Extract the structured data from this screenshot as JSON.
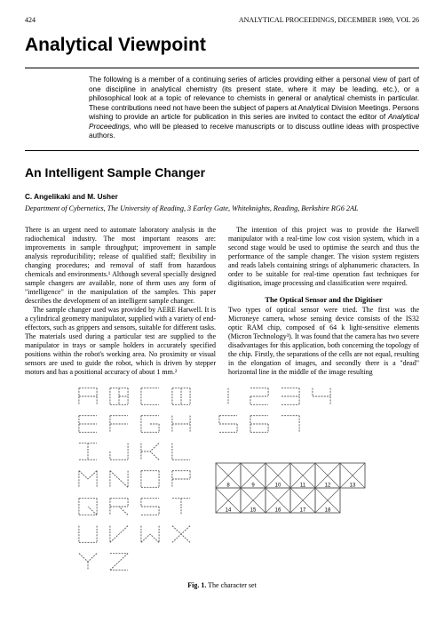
{
  "header": {
    "page_number": "424",
    "running_head": "ANALYTICAL PROCEEDINGS, DECEMBER 1989, VOL 26"
  },
  "main_title": "Analytical Viewpoint",
  "abstract": {
    "text_before_ital": "The following is a member of a continuing series of articles providing either a personal view of part of one discipline in analytical chemistry (its present state, where it may be leading, etc.), or a philosophical look at a topic of relevance to chemists in general or analytical chemists in particular. These contributions need not have been the subject of papers at Analytical Division Meetings. Persons wishing to provide an article for publication in this series are invited to contact the editor of ",
    "ital": "Analytical Proceedings,",
    "text_after_ital": " who will be pleased to receive manuscripts or to discuss outline ideas with prospective authors."
  },
  "article_title": "An Intelligent Sample Changer",
  "authors": "C. Angelikaki and M. Usher",
  "affiliation": "Department of Cybernetics, The University of Reading, 3 Earley Gate, Whiteknights, Reading, Berkshire RG6 2AL",
  "left_col": {
    "p1": "There is an urgent need to automate laboratory analysis in the radiochemical industry. The most important reasons are: improvements in sample throughput; improvement in sample analysis reproducibility; release of qualified staff; flexibility in changing procedures; and removal of staff from hazardous chemicals and environments.¹ Although several specially designed sample changers are available, none of them uses any form of \"intelligence\" in the manipulation of the samples. This paper describes the development of an intelligent sample changer.",
    "p2": "The sample changer used was provided by AERE Harwell. It is a cylindrical geometry manipulator, supplied with a variety of end-effectors, such as grippers and sensors, suitable for different tasks. The materials used during a particular test are supplied to the manipulator in trays or sample holders in accurately specified positions within the robot's working area. No proximity or visual sensors are used to guide the robot, which is driven by stepper motors and has a positional accuracy of about 1 mm.²"
  },
  "right_col": {
    "p1": "The intention of this project was to provide the Harwell manipulator with a real-time low cost vision system, which in a second stage would be used to optimise the search and thus the performance of the sample changer. The vision system registers and reads labels containing strings of alphanumeric characters. In order to be suitable for real-time operation fast techniques for digitisation, image processing and classification were required.",
    "heading": "The Optical Sensor and the Digitiser",
    "p2": "Two types of optical sensor were tried. The first was the Microneye camera, whose sensing device consists of the IS32 optic RAM chip, composed of 64 k light-sensitive elements (Micron Technology³). It was found that the camera has two severe disadvantages for this application, both concerning the topology of the chip. Firstly, the separations of the cells are not equal, resulting in the elongation of images, and secondly there is a \"dead\" horizontal line in the middle of the image resulting"
  },
  "figure": {
    "caption_bold": "Fig. 1.",
    "caption_rest": "  The character set",
    "stroke": "#555555",
    "stroke_width": 0.9,
    "char_grid": {
      "letters": [
        [
          "A",
          "B",
          "C",
          "D"
        ],
        [
          "E",
          "F",
          "G",
          "H"
        ],
        [
          "I",
          "J",
          "K",
          "L"
        ],
        [
          "M",
          "N",
          "O",
          "P"
        ],
        [
          "Q",
          "R",
          "S",
          "T"
        ],
        [
          "U",
          "V",
          "W",
          "X"
        ],
        [
          "Y",
          "Z"
        ]
      ],
      "digits_top": [
        [
          "1",
          "2",
          "3",
          "4"
        ],
        [
          "5",
          "6",
          "7"
        ]
      ],
      "digits_bottom": [
        [
          "8",
          "9",
          "10",
          "11",
          "12",
          "13"
        ],
        [
          "14",
          "15",
          "16",
          "17",
          "18"
        ]
      ]
    }
  }
}
